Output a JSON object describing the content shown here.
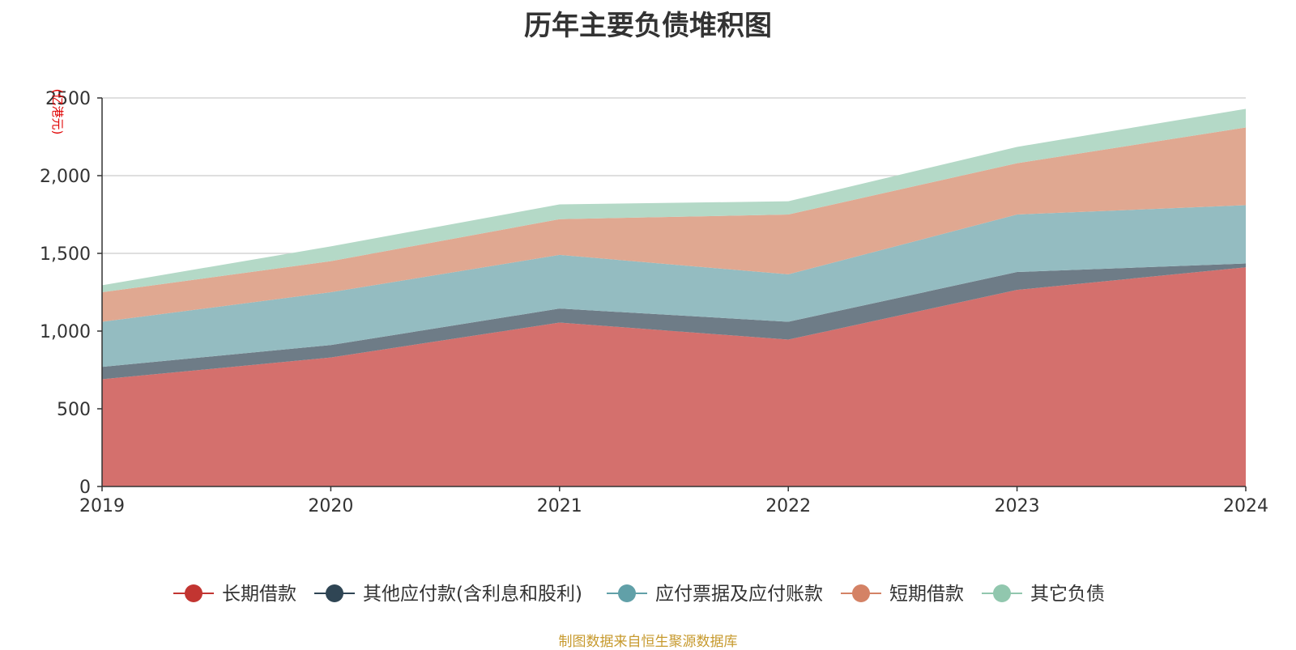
{
  "title": "历年主要负债堆积图",
  "source": "制图数据来自恒生聚源数据库",
  "chart_data": {
    "type": "area",
    "stacked": true,
    "title": "历年主要负债堆积图",
    "ylabel": "(亿港元)",
    "x": [
      "2019",
      "2020",
      "2021",
      "2022",
      "2023",
      "2024"
    ],
    "ylim": [
      0,
      2500
    ],
    "yticks": [
      "0",
      "500",
      "1,000",
      "1,500",
      "2,000",
      "2500"
    ],
    "grid": true,
    "legend_position": "bottom",
    "series": [
      {
        "name": "长期借款",
        "values": [
          690,
          830,
          1055,
          945,
          1265,
          1410
        ],
        "color": "#c23531",
        "fill": "#d4706d"
      },
      {
        "name": "其他应付款(含利息和股利)",
        "values": [
          80,
          80,
          90,
          115,
          115,
          25
        ],
        "color": "#2f4554",
        "fill": "#6e7c87"
      },
      {
        "name": "应付票据及应付账款",
        "values": [
          290,
          340,
          345,
          305,
          370,
          375
        ],
        "color": "#61a0a8",
        "fill": "#94bcc1"
      },
      {
        "name": "短期借款",
        "values": [
          190,
          200,
          230,
          385,
          330,
          500
        ],
        "color": "#d48265",
        "fill": "#e0a891"
      },
      {
        "name": "其它负债",
        "values": [
          45,
          95,
          95,
          85,
          105,
          120
        ],
        "color": "#91c7ae",
        "fill": "#b4d9c7"
      }
    ]
  }
}
